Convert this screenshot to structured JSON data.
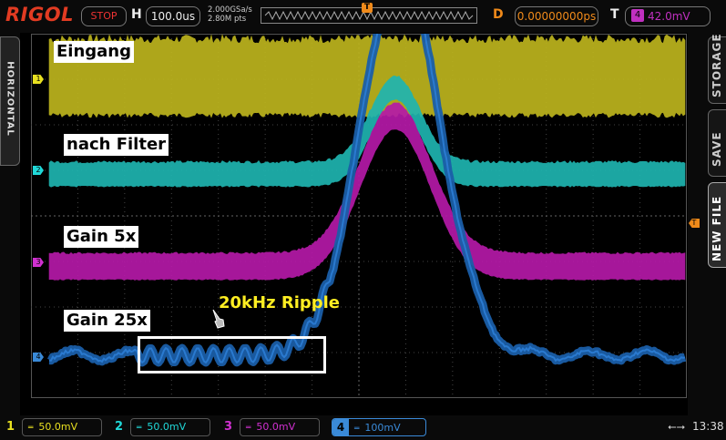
{
  "top": {
    "logo": "RIGOL",
    "run_status": "STOP",
    "h_label": "H",
    "timebase": "100.0us",
    "sample_rate": "2.000GSa/s",
    "memory_depth": "2.80M pts",
    "trigger_marker": "T",
    "delay_label": "D",
    "delay_value": "0.00000000ps",
    "trigger_label": "T",
    "trigger_source": "4",
    "trigger_level": "42.0mV"
  },
  "side": {
    "left_tab": "HORIZONTAL",
    "right_tabs": [
      "STORAGE",
      "SAVE",
      "NEW FILE"
    ],
    "right_trigger_marker": "T"
  },
  "waveforms": {
    "labels": [
      "Eingang",
      "nach Filter",
      "Gain 5x",
      "Gain 25x"
    ],
    "annotation": "20kHz Ripple",
    "channel_markers": [
      "1",
      "2",
      "3",
      "4"
    ],
    "colors": {
      "ch1": "#bdb51e",
      "ch2": "#1fb5b0",
      "ch3": "#b51aa8",
      "ch4": "#1a5ea8"
    }
  },
  "channels": [
    {
      "num": "1",
      "coupling": "DC",
      "scale": "50.0mV",
      "color": "#e8e020"
    },
    {
      "num": "2",
      "coupling": "DC",
      "scale": "50.0mV",
      "color": "#20d8d8"
    },
    {
      "num": "3",
      "coupling": "DC",
      "scale": "50.0mV",
      "color": "#d030d0"
    },
    {
      "num": "4",
      "coupling": "DC",
      "scale": "100mV",
      "color": "#3a8ad8"
    }
  ],
  "status": {
    "usb": "usb-icon",
    "time": "13:38"
  }
}
